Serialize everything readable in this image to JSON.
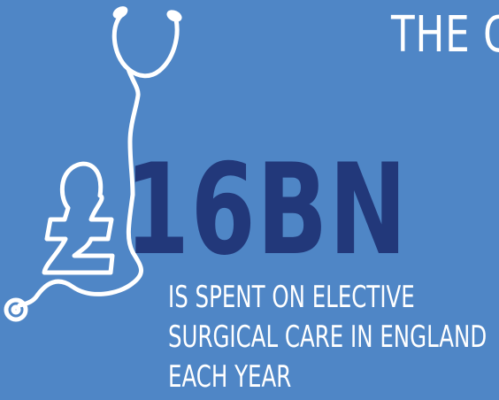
{
  "header": {
    "title_fragment": "THE C"
  },
  "hero": {
    "amount": "16BN",
    "currency_symbol": "£"
  },
  "description": {
    "lines": [
      "IS SPENT ON ELECTIVE",
      "SURGICAL CARE IN ENGLAND",
      "EACH YEAR"
    ]
  },
  "icons": {
    "stethoscope": "stethoscope-icon",
    "pound": "pound-sign-icon"
  },
  "colors": {
    "background": "#4f86c6",
    "primary_text": "#ffffff",
    "highlight": "#22387a"
  }
}
